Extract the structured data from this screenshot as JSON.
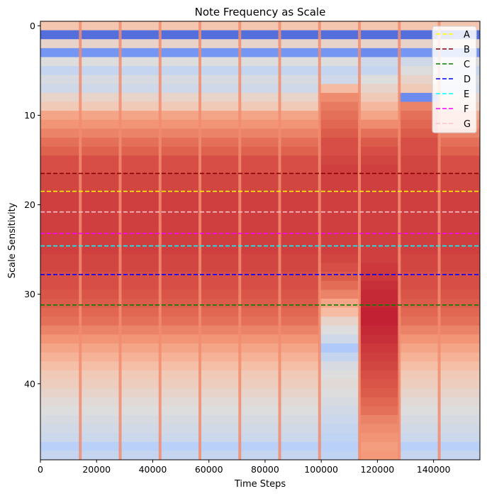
{
  "chart_data": {
    "type": "heatmap",
    "title": "Note Frequency as Scale",
    "xlabel": "Time Steps",
    "ylabel": "Scale Sensitivity",
    "xlim": [
      0,
      156500
    ],
    "ylim": [
      48.5,
      -0.5
    ],
    "x_ticks": [
      0,
      20000,
      40000,
      60000,
      80000,
      100000,
      120000,
      140000
    ],
    "x_tick_labels": [
      "0",
      "20000",
      "40000",
      "60000",
      "80000",
      "100000",
      "120000",
      "140000"
    ],
    "y_ticks": [
      0,
      10,
      20,
      30,
      40
    ],
    "y_tick_labels": [
      "0",
      "10",
      "20",
      "30",
      "40"
    ],
    "colormap": "coolwarm",
    "grid": false,
    "legend_position": "top-right",
    "segments": [
      {
        "x0": 0,
        "x1": 14200,
        "profile": "standard"
      },
      {
        "x0": 14200,
        "x1": 28400,
        "profile": "standard"
      },
      {
        "x0": 28400,
        "x1": 42600,
        "profile": "standard"
      },
      {
        "x0": 42600,
        "x1": 56800,
        "profile": "standard"
      },
      {
        "x0": 56800,
        "x1": 71000,
        "profile": "standard"
      },
      {
        "x0": 71000,
        "x1": 85200,
        "profile": "standard"
      },
      {
        "x0": 85200,
        "x1": 99400,
        "profile": "standard"
      },
      {
        "x0": 99400,
        "x1": 113600,
        "profile": "variant_a"
      },
      {
        "x0": 113600,
        "x1": 127800,
        "profile": "variant_b"
      },
      {
        "x0": 127800,
        "x1": 142000,
        "profile": "variant_c"
      },
      {
        "x0": 142000,
        "x1": 156500,
        "profile": "standard"
      }
    ],
    "profiles": {
      "standard": [
        0.62,
        0.08,
        0.55,
        0.18,
        0.5,
        0.42,
        0.48,
        0.45,
        0.55,
        0.6,
        0.72,
        0.76,
        0.8,
        0.84,
        0.87,
        0.9,
        0.9,
        0.91,
        0.91,
        0.92,
        0.92,
        0.92,
        0.92,
        0.92,
        0.92,
        0.92,
        0.91,
        0.91,
        0.9,
        0.9,
        0.89,
        0.88,
        0.86,
        0.84,
        0.8,
        0.76,
        0.72,
        0.68,
        0.64,
        0.6,
        0.58,
        0.55,
        0.52,
        0.5,
        0.48,
        0.46,
        0.44,
        0.38,
        0.42
      ],
      "variant_a": [
        0.62,
        0.08,
        0.55,
        0.18,
        0.5,
        0.42,
        0.45,
        0.65,
        0.78,
        0.82,
        0.84,
        0.86,
        0.88,
        0.9,
        0.9,
        0.91,
        0.92,
        0.92,
        0.92,
        0.92,
        0.92,
        0.92,
        0.92,
        0.92,
        0.92,
        0.92,
        0.91,
        0.9,
        0.88,
        0.85,
        0.8,
        0.72,
        0.65,
        0.55,
        0.5,
        0.45,
        0.35,
        0.42,
        0.48,
        0.5,
        0.52,
        0.5,
        0.48,
        0.46,
        0.44,
        0.42,
        0.4,
        0.38,
        0.4
      ],
      "variant_b": [
        0.62,
        0.08,
        0.55,
        0.15,
        0.45,
        0.42,
        0.5,
        0.55,
        0.6,
        0.66,
        0.72,
        0.78,
        0.84,
        0.88,
        0.9,
        0.91,
        0.92,
        0.92,
        0.92,
        0.92,
        0.92,
        0.92,
        0.92,
        0.92,
        0.92,
        0.92,
        0.92,
        0.93,
        0.93,
        0.94,
        0.95,
        0.95,
        0.96,
        0.96,
        0.95,
        0.94,
        0.93,
        0.92,
        0.91,
        0.9,
        0.89,
        0.88,
        0.86,
        0.84,
        0.8,
        0.78,
        0.76,
        0.74,
        0.75
      ],
      "variant_c": [
        0.62,
        0.08,
        0.55,
        0.18,
        0.45,
        0.5,
        0.55,
        0.6,
        0.15,
        0.8,
        0.84,
        0.86,
        0.88,
        0.9,
        0.9,
        0.91,
        0.91,
        0.92,
        0.92,
        0.92,
        0.92,
        0.92,
        0.92,
        0.92,
        0.92,
        0.92,
        0.91,
        0.91,
        0.9,
        0.9,
        0.89,
        0.88,
        0.86,
        0.84,
        0.8,
        0.76,
        0.72,
        0.68,
        0.64,
        0.6,
        0.58,
        0.55,
        0.52,
        0.5,
        0.48,
        0.46,
        0.44,
        0.38,
        0.42
      ]
    },
    "hlines": [
      {
        "name": "A",
        "y": 18.5,
        "color": "#ffff00"
      },
      {
        "name": "B",
        "y": 16.5,
        "color": "#8b0000"
      },
      {
        "name": "C",
        "y": 31.2,
        "color": "#008000"
      },
      {
        "name": "D",
        "y": 27.8,
        "color": "#0000ff"
      },
      {
        "name": "E",
        "y": 24.6,
        "color": "#00ffff"
      },
      {
        "name": "F",
        "y": 23.2,
        "color": "#ff00ff"
      },
      {
        "name": "G",
        "y": 20.8,
        "color": "#ffc0cb"
      }
    ]
  }
}
